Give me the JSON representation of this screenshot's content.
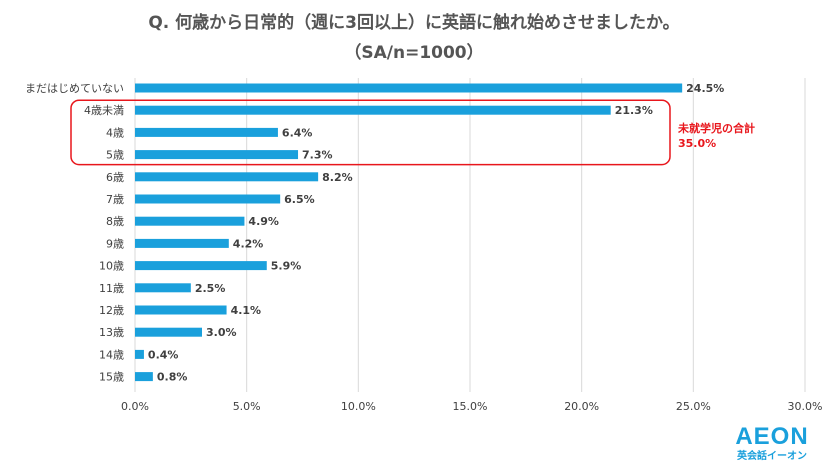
{
  "chart_data": {
    "type": "bar",
    "orientation": "horizontal",
    "title": "Q. 何歳から日常的（週に3回以上）に英語に触れ始めさせましたか。",
    "subtitle": "（SA/n=1000）",
    "categories": [
      "まだはじめていない",
      "4歳未満",
      "4歳",
      "5歳",
      "6歳",
      "7歳",
      "8歳",
      "9歳",
      "10歳",
      "11歳",
      "12歳",
      "13歳",
      "14歳",
      "15歳"
    ],
    "values": [
      24.5,
      21.3,
      6.4,
      7.3,
      8.2,
      6.5,
      4.9,
      4.2,
      5.9,
      2.5,
      4.1,
      3.0,
      0.4,
      0.8
    ],
    "value_labels": [
      "24.5%",
      "21.3%",
      "6.4%",
      "7.3%",
      "8.2%",
      "6.5%",
      "4.9%",
      "4.2%",
      "5.9%",
      "2.5%",
      "4.1%",
      "3.0%",
      "0.4%",
      "0.8%"
    ],
    "x_ticks": [
      "0.0%",
      "5.0%",
      "10.0%",
      "15.0%",
      "20.0%",
      "25.0%",
      "30.0%"
    ],
    "xlim": [
      0,
      30
    ],
    "grid": true,
    "bar_color": "#1aa0dc",
    "annotation": {
      "text_line1": "未就学児の合計",
      "text_line2": "35.0%",
      "color": "#e8161c",
      "group": [
        "4歳未満",
        "4歳",
        "5歳"
      ]
    }
  },
  "logo": {
    "word": "AEON",
    "sub": "英会話イーオン"
  }
}
